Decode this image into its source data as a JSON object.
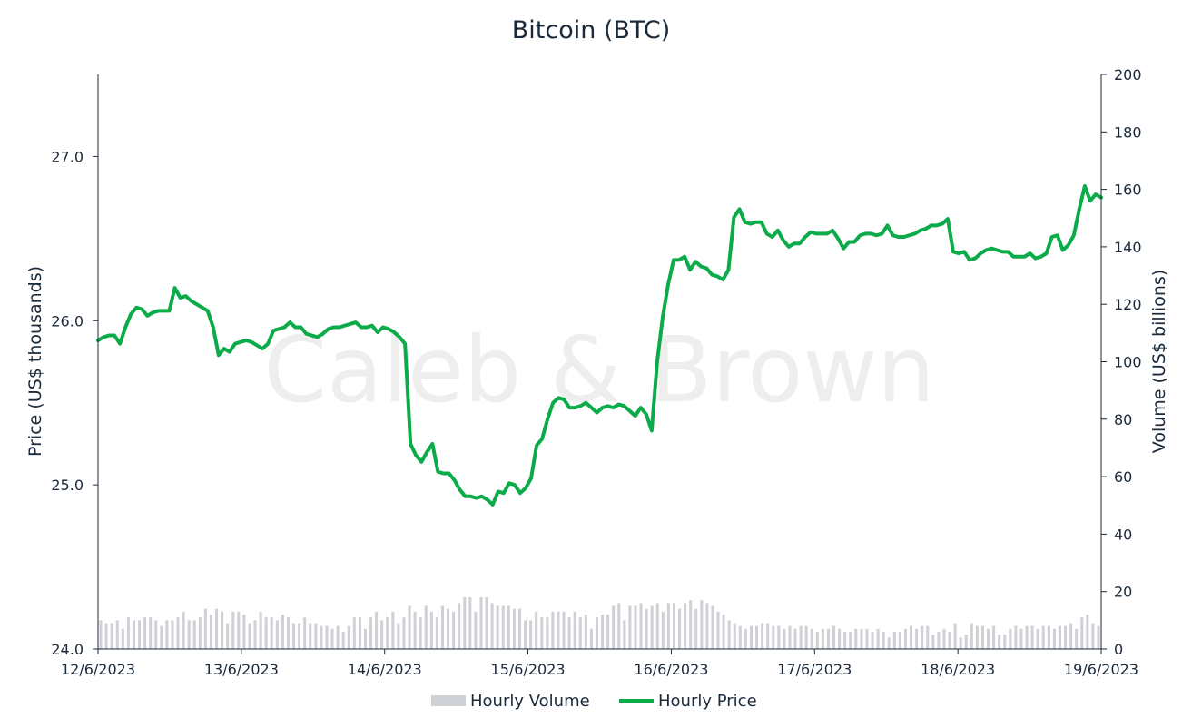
{
  "chart_data": {
    "type": "line",
    "title": "Bitcoin (BTC)",
    "watermark": "Caleb & Brown",
    "ylabel_left": "Price (US$ thousands)",
    "ylabel_right": "Volume (US$ billions)",
    "ylim_left": [
      24.0,
      27.5
    ],
    "ylim_right": [
      0,
      200
    ],
    "yticks_left": [
      "24.0",
      "25.0",
      "26.0",
      "27.0"
    ],
    "yticks_right": [
      "0",
      "20",
      "40",
      "60",
      "80",
      "100",
      "120",
      "140",
      "160",
      "180",
      "200"
    ],
    "x_tick_labels": [
      "12/6/2023",
      "13/6/2023",
      "14/6/2023",
      "15/6/2023",
      "16/6/2023",
      "17/6/2023",
      "18/6/2023",
      "19/6/2023"
    ],
    "grid": false,
    "legend_position": "bottom",
    "series": [
      {
        "name": "Hourly Volume",
        "kind": "bar",
        "axis": "right",
        "color": "#cfd1d6",
        "values": [
          10,
          9,
          9,
          10,
          7,
          11,
          10,
          10,
          11,
          11,
          10,
          8,
          10,
          10,
          11,
          13,
          10,
          10,
          11,
          14,
          12,
          14,
          13,
          9,
          13,
          13,
          12,
          9,
          10,
          13,
          11,
          11,
          10,
          12,
          11,
          9,
          9,
          11,
          9,
          9,
          8,
          8,
          7,
          8,
          6,
          8,
          11,
          11,
          7,
          11,
          13,
          10,
          11,
          13,
          9,
          11,
          15,
          13,
          11,
          15,
          13,
          11,
          15,
          14,
          13,
          16,
          18,
          18,
          13,
          18,
          18,
          16,
          15,
          15,
          15,
          14,
          14,
          10,
          10,
          13,
          11,
          11,
          13,
          13,
          13,
          11,
          13,
          11,
          12,
          7,
          11,
          12,
          12,
          15,
          16,
          10,
          15,
          15,
          16,
          14,
          15,
          16,
          13,
          16,
          16,
          14,
          16,
          17,
          14,
          17,
          16,
          15,
          13,
          12,
          10,
          9,
          8,
          7,
          8,
          8,
          9,
          9,
          8,
          8,
          7,
          8,
          7,
          8,
          8,
          7,
          6,
          7,
          7,
          8,
          7,
          6,
          6,
          7,
          7,
          7,
          6,
          7,
          6,
          4,
          6,
          6,
          7,
          8,
          7,
          8,
          8,
          5,
          6,
          7,
          6,
          9,
          4,
          5,
          9,
          8,
          8,
          7,
          8,
          5,
          5,
          7,
          8,
          7,
          8,
          8,
          7,
          8,
          8,
          7,
          8,
          8,
          9,
          7,
          11,
          12,
          9,
          8
        ]
      },
      {
        "name": "Hourly Price",
        "kind": "line",
        "axis": "left",
        "color": "#0cab4a",
        "values": [
          25.88,
          25.9,
          25.91,
          25.91,
          25.86,
          25.96,
          26.04,
          26.08,
          26.07,
          26.03,
          26.05,
          26.06,
          26.06,
          26.06,
          26.2,
          26.14,
          26.15,
          26.12,
          26.1,
          26.08,
          26.06,
          25.96,
          25.79,
          25.83,
          25.81,
          25.86,
          25.87,
          25.88,
          25.87,
          25.85,
          25.83,
          25.86,
          25.94,
          25.95,
          25.96,
          25.99,
          25.96,
          25.96,
          25.92,
          25.91,
          25.9,
          25.92,
          25.95,
          25.96,
          25.96,
          25.97,
          25.98,
          25.99,
          25.96,
          25.96,
          25.97,
          25.93,
          25.96,
          25.95,
          25.93,
          25.9,
          25.86,
          25.25,
          25.18,
          25.14,
          25.2,
          25.25,
          25.08,
          25.07,
          25.07,
          25.03,
          24.97,
          24.93,
          24.93,
          24.92,
          24.93,
          24.91,
          24.88,
          24.96,
          24.95,
          25.01,
          25.0,
          24.95,
          24.98,
          25.04,
          25.24,
          25.28,
          25.4,
          25.5,
          25.53,
          25.52,
          25.47,
          25.47,
          25.48,
          25.5,
          25.47,
          25.44,
          25.47,
          25.48,
          25.47,
          25.49,
          25.48,
          25.45,
          25.42,
          25.47,
          25.43,
          25.33,
          25.75,
          26.02,
          26.22,
          26.37,
          26.37,
          26.39,
          26.31,
          26.36,
          26.33,
          26.32,
          26.28,
          26.27,
          26.25,
          26.31,
          26.63,
          26.68,
          26.6,
          26.59,
          26.6,
          26.6,
          26.53,
          26.51,
          26.55,
          26.49,
          26.45,
          26.47,
          26.47,
          26.51,
          26.54,
          26.53,
          26.53,
          26.53,
          26.55,
          26.5,
          26.44,
          26.48,
          26.48,
          26.52,
          26.53,
          26.53,
          26.52,
          26.53,
          26.58,
          26.52,
          26.51,
          26.51,
          26.52,
          26.53,
          26.55,
          26.56,
          26.58,
          26.58,
          26.59,
          26.62,
          26.42,
          26.41,
          26.42,
          26.37,
          26.38,
          26.41,
          26.43,
          26.44,
          26.43,
          26.42,
          26.42,
          26.39,
          26.39,
          26.39,
          26.41,
          26.38,
          26.39,
          26.41,
          26.51,
          26.52,
          26.43,
          26.46,
          26.52,
          26.68,
          26.82,
          26.73,
          26.77,
          26.75
        ]
      }
    ]
  }
}
